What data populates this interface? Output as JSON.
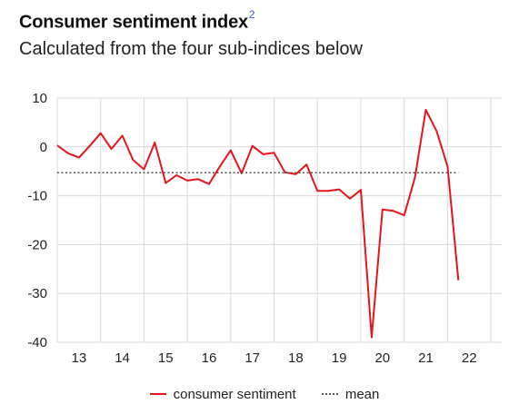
{
  "title": "Consumer sentiment index",
  "title_footnote": "2",
  "subtitle": "Calculated from the four sub-indices below",
  "colors": {
    "series": "#e8141c",
    "mean": "#555555",
    "grid": "#d9d9d9"
  },
  "legend": {
    "series_label": "consumer sentiment",
    "mean_label": "mean"
  },
  "chart_data": {
    "type": "line",
    "title": "Consumer sentiment index",
    "subtitle": "Calculated from the four sub-indices below",
    "xlabel": "",
    "ylabel": "",
    "ylim": [
      -40,
      10
    ],
    "yticks": [
      10,
      0,
      -10,
      -20,
      -30,
      -40
    ],
    "xlim": [
      12.5,
      22.75
    ],
    "xticks": [
      "13",
      "14",
      "15",
      "16",
      "17",
      "18",
      "19",
      "20",
      "21",
      "22"
    ],
    "grid": true,
    "legend_position": "bottom",
    "series": [
      {
        "name": "consumer sentiment",
        "color": "#e8141c",
        "x": [
          12.5,
          12.75,
          13.0,
          13.25,
          13.5,
          13.75,
          14.0,
          14.25,
          14.5,
          14.75,
          15.0,
          15.25,
          15.5,
          15.75,
          16.0,
          16.25,
          16.5,
          16.75,
          17.0,
          17.25,
          17.5,
          17.75,
          18.0,
          18.25,
          18.5,
          18.75,
          19.0,
          19.25,
          19.5,
          19.75,
          20.0,
          20.25,
          20.5,
          20.75,
          21.0,
          21.25,
          21.5,
          21.75
        ],
        "values": [
          0.3,
          -1.3,
          -2.2,
          0.2,
          2.8,
          -0.4,
          2.3,
          -2.7,
          -4.6,
          0.9,
          -7.4,
          -5.8,
          -6.9,
          -6.6,
          -7.6,
          -4.0,
          -0.7,
          -5.4,
          0.2,
          -1.5,
          -1.2,
          -5.2,
          -5.6,
          -3.6,
          -9.0,
          -9.0,
          -8.7,
          -10.6,
          -8.8,
          -39.0,
          -12.8,
          -13.1,
          -14.0,
          -6.2,
          7.6,
          3.2,
          -4.0,
          -27.3
        ]
      },
      {
        "name": "mean",
        "color": "#555555",
        "style": "dotted",
        "x": [
          12.5,
          21.75
        ],
        "values": [
          -5.3,
          -5.3
        ]
      }
    ]
  }
}
